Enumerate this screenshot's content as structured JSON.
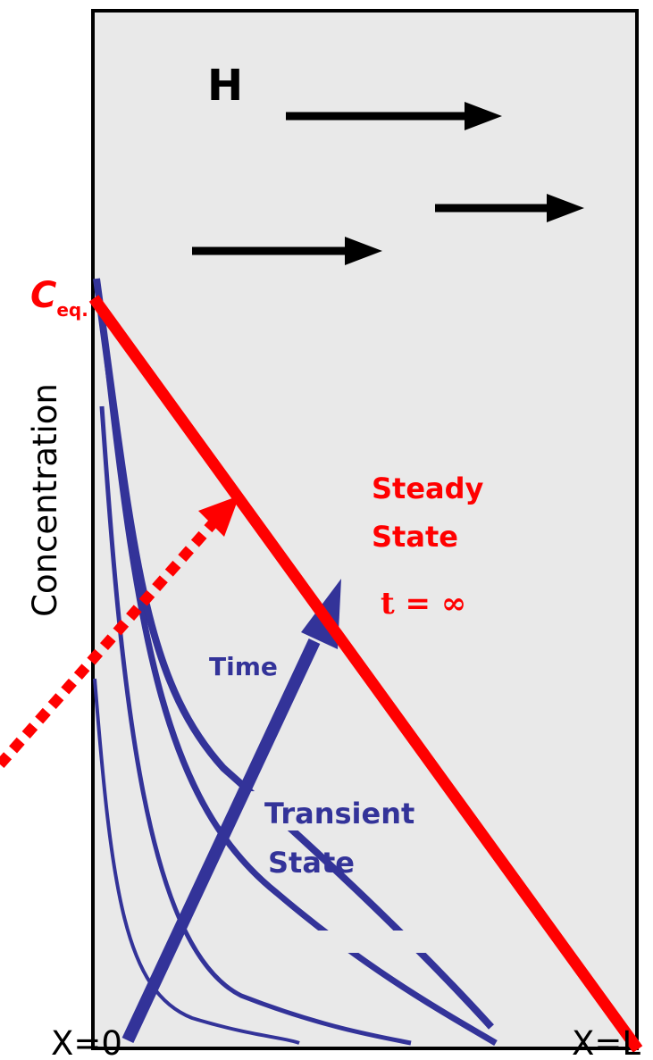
{
  "labels": {
    "field": "H",
    "c_eq_main": "C",
    "c_eq_sub": "eq.",
    "y_axis": "Concentration",
    "steady_line1": "Steady",
    "steady_line2": "State",
    "steady_time": "t = ∞",
    "time": "Time",
    "transient_line1": "Transient",
    "transient_line2": "State",
    "x_start": "X=0",
    "x_end": "X=L"
  },
  "colors": {
    "steady": "#ff0000",
    "transient": "#333399",
    "arrow": "#000000",
    "panel": "#e9e9e9",
    "border": "#000000"
  }
}
